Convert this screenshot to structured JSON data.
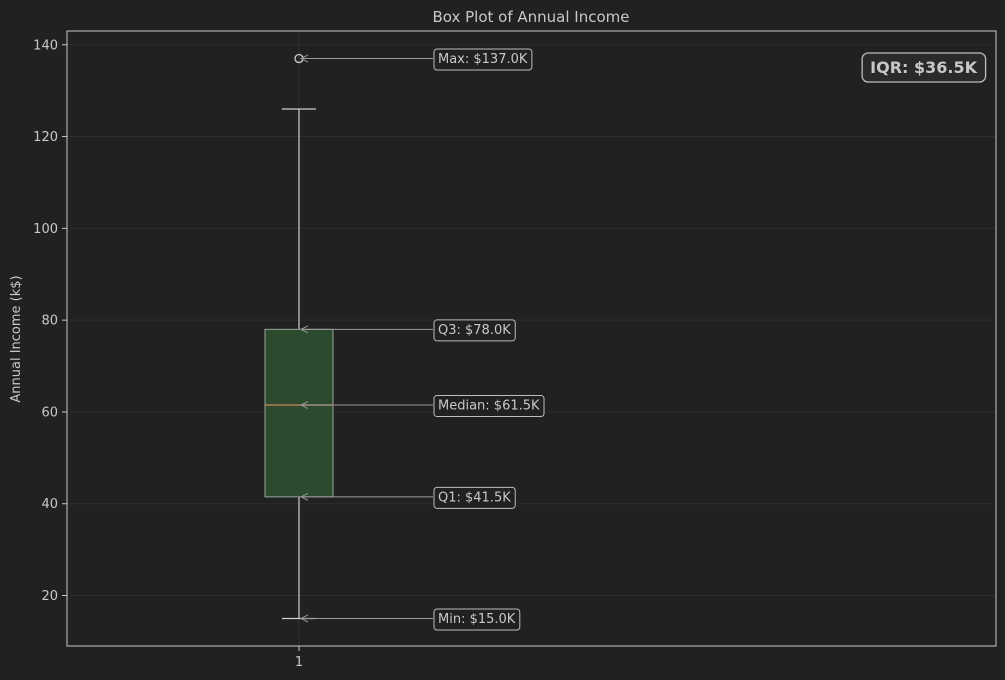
{
  "chart_data": {
    "type": "box",
    "title": "Box Plot of Annual Income",
    "xlabel": "",
    "ylabel": "Annual Income (k$)",
    "categories": [
      "1"
    ],
    "ylim": [
      9,
      143
    ],
    "yticks": [
      20,
      40,
      60,
      80,
      100,
      120,
      140
    ],
    "grid": true,
    "box": {
      "whisker_low": 15.0,
      "q1": 41.5,
      "median": 61.5,
      "q3": 78.0,
      "whisker_high": 126.0,
      "outliers": [
        137.0
      ]
    },
    "annotations": [
      {
        "label": "Max: $137.0K",
        "value": 137.0
      },
      {
        "label": "Q3: $78.0K",
        "value": 78.0
      },
      {
        "label": "Median: $61.5K",
        "value": 61.5
      },
      {
        "label": "Q1: $41.5K",
        "value": 41.5
      },
      {
        "label": "Min: $15.0K",
        "value": 15.0
      }
    ],
    "iqr_label": "IQR: $36.5K",
    "colors": {
      "background": "#212121",
      "grid": "#2e2e2e",
      "axes": "#c8c8c8",
      "box_fill": "#2b4a2e",
      "box_edge": "#9aa59a",
      "median": "#b07a55",
      "whisker": "#cfcfcf"
    }
  }
}
